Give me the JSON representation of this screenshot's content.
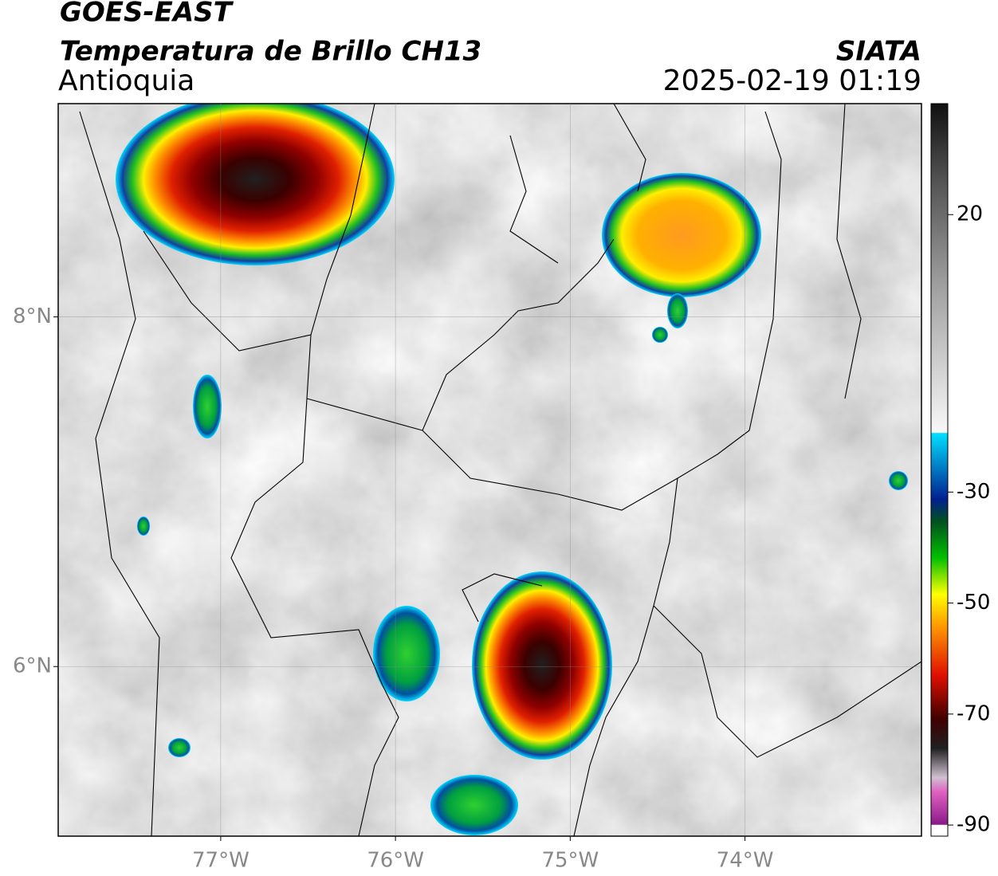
{
  "header": {
    "product": "GOES-EAST",
    "title": "Temperatura de Brillo CH13",
    "region": "Antioquia",
    "source": "SIATA",
    "datetime": "2025-02-19 01:19"
  },
  "map": {
    "xlim": [
      -77.93,
      -72.99
    ],
    "ylim": [
      5.03,
      9.22
    ],
    "xticks": [
      {
        "value": -77,
        "label": "77°W"
      },
      {
        "value": -76,
        "label": "76°W"
      },
      {
        "value": -75,
        "label": "75°W"
      },
      {
        "value": -74,
        "label": "74°W"
      }
    ],
    "yticks": [
      {
        "value": 6,
        "label": "6°N"
      },
      {
        "value": 8,
        "label": "8°N"
      }
    ],
    "grid": true
  },
  "colorbar": {
    "clim": [
      -92,
      40
    ],
    "ticks": [
      -90,
      -70,
      -50,
      -30,
      20
    ]
  }
}
